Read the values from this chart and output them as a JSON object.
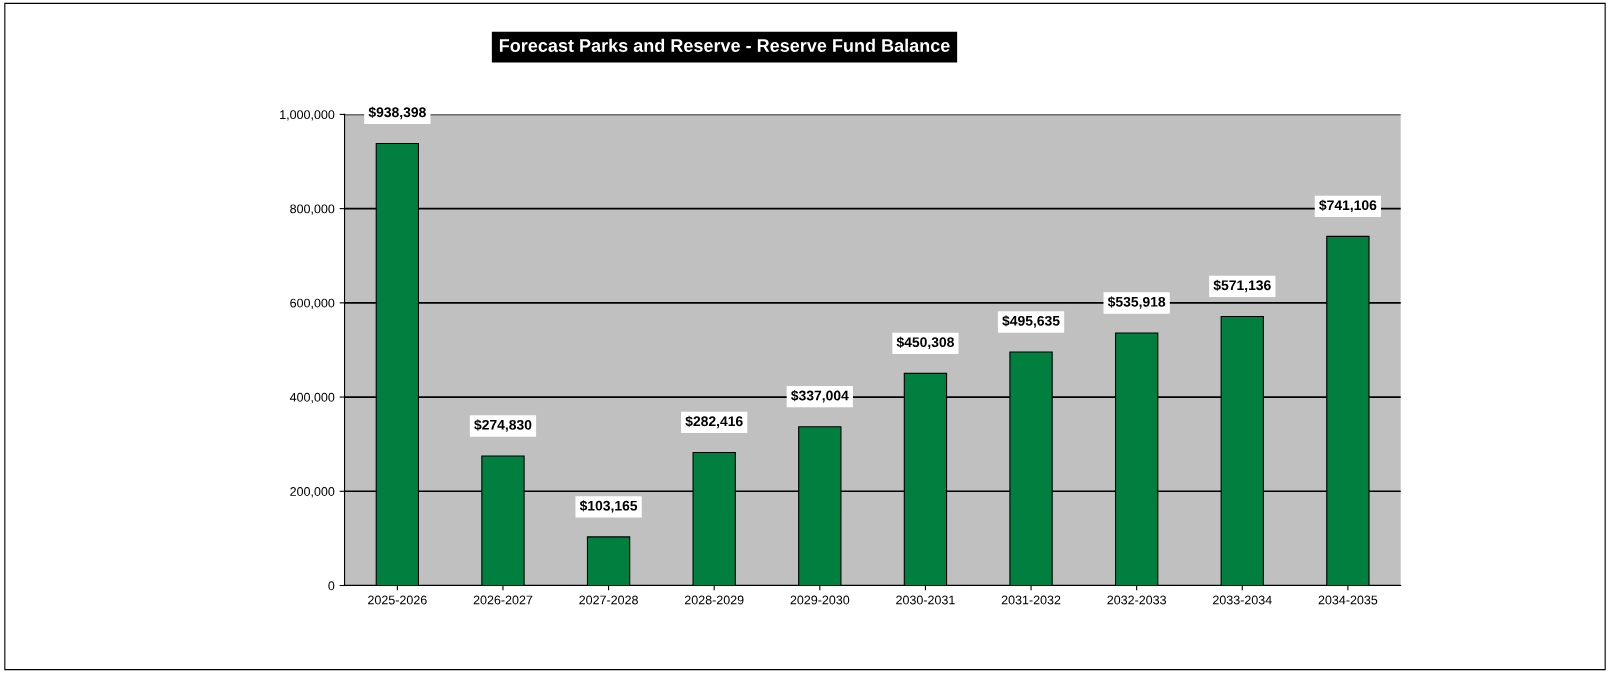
{
  "chart_data": {
    "type": "bar",
    "title": "Forecast Parks and Reserve - Reserve Fund Balance",
    "categories": [
      "2025-2026",
      "2026-2027",
      "2027-2028",
      "2028-2029",
      "2029-2030",
      "2030-2031",
      "2031-2032",
      "2032-2033",
      "2033-2034",
      "2034-2035"
    ],
    "values": [
      938398,
      274830,
      103165,
      282416,
      337004,
      450308,
      495635,
      535918,
      571136,
      741106
    ],
    "value_labels": [
      "$938,398",
      "$274,830",
      "$103,165",
      "$282,416",
      "$337,004",
      "$450,308",
      "$495,635",
      "$535,918",
      "$571,136",
      "$741,106"
    ],
    "color": "#007f3f",
    "ylim": [
      0,
      1000000
    ],
    "yticks": [
      {
        "value": 0,
        "label": "0"
      },
      {
        "value": 200000,
        "label": "200,000"
      },
      {
        "value": 400000,
        "label": "400,000"
      },
      {
        "value": 600000,
        "label": "600,000"
      },
      {
        "value": 800000,
        "label": "800,000"
      },
      {
        "value": 1000000,
        "label": "1,000,000"
      }
    ],
    "grid": "y",
    "legend": false
  }
}
